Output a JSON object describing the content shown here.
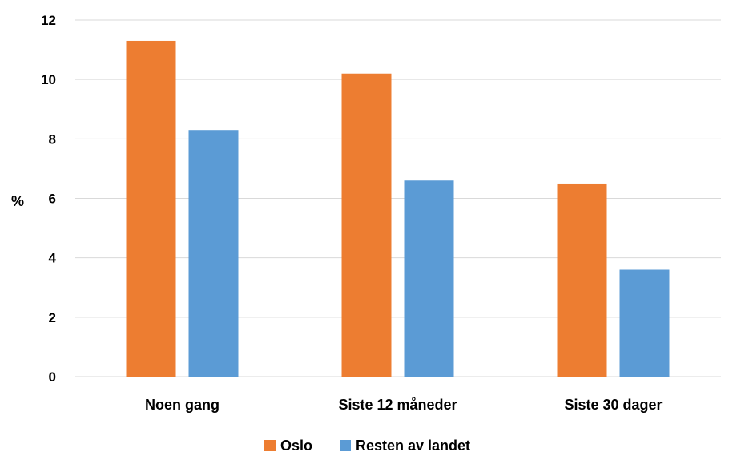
{
  "chart_data": {
    "type": "bar",
    "categories": [
      "Noen gang",
      "Siste 12 måneder",
      "Siste 30 dager"
    ],
    "series": [
      {
        "name": "Oslo",
        "values": [
          11.3,
          10.2,
          6.5
        ],
        "color": "#ED7D31"
      },
      {
        "name": "Resten av landet",
        "values": [
          8.3,
          6.6,
          3.6
        ],
        "color": "#5B9BD5"
      }
    ],
    "title": "",
    "xlabel": "",
    "ylabel": "%",
    "ylim": [
      0,
      12
    ],
    "yticks": [
      "0",
      "2",
      "4",
      "6",
      "8",
      "10",
      "12"
    ],
    "grid": true,
    "legend_position": "bottom"
  }
}
